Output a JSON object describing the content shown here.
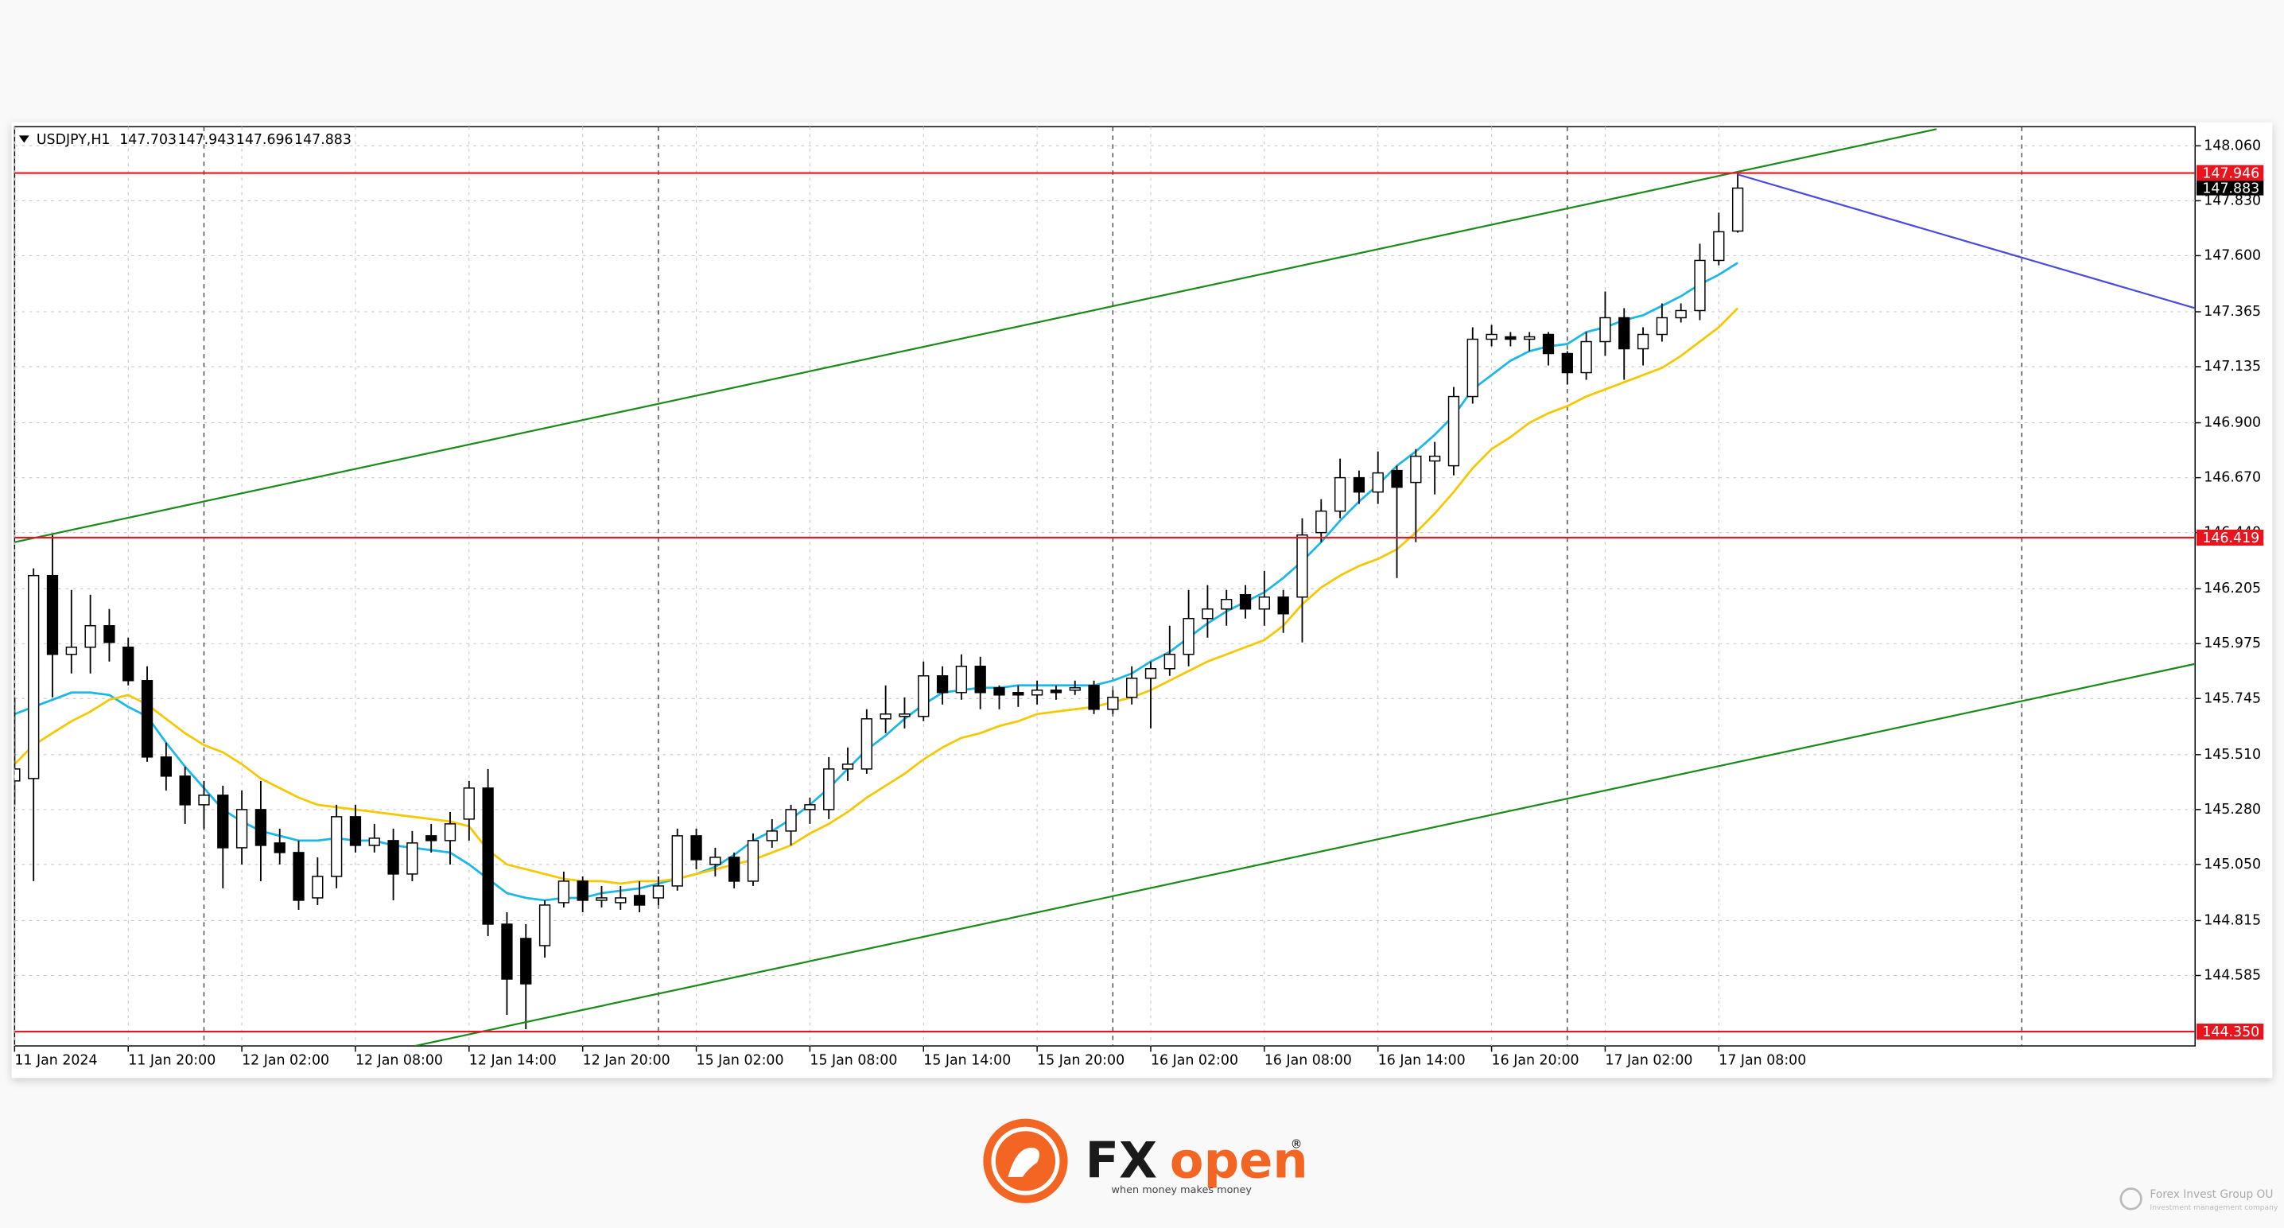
{
  "chart_data": {
    "type": "candlestick",
    "title": "USDJPY,H1",
    "quote": [
      "147.703",
      "147.943",
      "147.696",
      "147.883"
    ],
    "categories": [
      "11 Jan 2024",
      null,
      null,
      null,
      null,
      null,
      "11 Jan 20:00",
      null,
      null,
      null,
      null,
      null,
      "12 Jan 02:00",
      null,
      null,
      null,
      null,
      null,
      "12 Jan 08:00",
      null,
      null,
      null,
      null,
      null,
      "12 Jan 14:00",
      null,
      null,
      null,
      null,
      null,
      "12 Jan 20:00",
      null,
      null,
      null,
      null,
      null,
      "15 Jan 02:00",
      null,
      null,
      null,
      null,
      null,
      "15 Jan 08:00",
      null,
      null,
      null,
      null,
      null,
      "15 Jan 14:00",
      null,
      null,
      null,
      null,
      null,
      "15 Jan 20:00",
      null,
      null,
      null,
      null,
      null,
      "16 Jan 02:00",
      null,
      null,
      null,
      null,
      null,
      "16 Jan 08:00",
      null,
      null,
      null,
      null,
      null,
      "16 Jan 14:00",
      null,
      null,
      null,
      null,
      null,
      "16 Jan 20:00",
      null,
      null,
      null,
      null,
      null,
      "17 Jan 02:00",
      null,
      null,
      null,
      null,
      null,
      "17 Jan 08:00",
      null
    ],
    "open": [
      145.4,
      145.41,
      146.26,
      145.93,
      145.96,
      146.05,
      145.96,
      145.82,
      145.5,
      145.42,
      145.3,
      145.34,
      145.12,
      145.28,
      145.14,
      145.1,
      144.91,
      145.0,
      145.25,
      145.13,
      145.15,
      145.01,
      145.17,
      145.15,
      145.24,
      145.37,
      144.8,
      144.74,
      144.71,
      144.89,
      144.98,
      144.9,
      144.89,
      144.92,
      144.91,
      144.96,
      145.17,
      145.05,
      145.08,
      144.98,
      145.15,
      145.19,
      145.28,
      145.28,
      145.45,
      145.45,
      145.66,
      145.67,
      145.67,
      145.84,
      145.77,
      145.88,
      145.79,
      145.77,
      145.76,
      145.78,
      145.78,
      145.8,
      145.7,
      145.75,
      145.83,
      145.87,
      145.93,
      146.08,
      146.12,
      146.18,
      146.12,
      146.17,
      146.17,
      146.44,
      146.53,
      146.67,
      146.61,
      146.7,
      146.65,
      146.74,
      146.72,
      147.01,
      147.25,
      147.26,
      147.25,
      147.27,
      147.19,
      147.11,
      147.24,
      147.34,
      147.21,
      147.27,
      147.34,
      147.37,
      147.58,
      147.703
    ],
    "high": [
      145.75,
      146.29,
      146.43,
      146.2,
      146.18,
      146.12,
      146.0,
      145.88,
      145.56,
      145.46,
      145.4,
      145.38,
      145.36,
      145.4,
      145.2,
      145.15,
      145.08,
      145.3,
      145.3,
      145.22,
      145.2,
      145.19,
      145.22,
      145.27,
      145.4,
      145.45,
      144.85,
      144.8,
      144.9,
      145.02,
      145.0,
      144.96,
      144.96,
      144.98,
      145.0,
      145.2,
      145.2,
      145.12,
      145.1,
      145.18,
      145.24,
      145.3,
      145.33,
      145.5,
      145.54,
      145.7,
      145.8,
      145.75,
      145.9,
      145.88,
      145.93,
      145.92,
      145.8,
      145.8,
      145.82,
      145.8,
      145.82,
      145.82,
      145.78,
      145.88,
      145.9,
      146.05,
      146.2,
      146.22,
      146.2,
      146.22,
      146.28,
      146.2,
      146.5,
      146.58,
      146.75,
      146.7,
      146.78,
      146.72,
      146.79,
      146.82,
      147.05,
      147.3,
      147.31,
      147.28,
      147.28,
      147.28,
      147.2,
      147.28,
      147.45,
      147.38,
      147.3,
      147.4,
      147.4,
      147.65,
      147.78,
      147.943
    ],
    "low": [
      145.3,
      144.98,
      145.75,
      145.85,
      145.85,
      145.9,
      145.8,
      145.48,
      145.36,
      145.22,
      145.2,
      144.95,
      145.05,
      144.98,
      145.05,
      144.86,
      144.88,
      144.95,
      145.1,
      145.1,
      144.9,
      144.98,
      145.1,
      145.05,
      145.15,
      144.75,
      144.42,
      144.36,
      144.66,
      144.87,
      144.85,
      144.87,
      144.86,
      144.85,
      144.88,
      144.94,
      145.03,
      145.0,
      144.95,
      144.96,
      145.12,
      145.13,
      145.22,
      145.24,
      145.4,
      145.43,
      145.6,
      145.62,
      145.65,
      145.72,
      145.74,
      145.7,
      145.7,
      145.71,
      145.72,
      145.74,
      145.76,
      145.68,
      145.68,
      145.72,
      145.62,
      145.84,
      145.88,
      146.0,
      146.05,
      146.08,
      146.05,
      146.02,
      145.98,
      146.4,
      146.5,
      146.56,
      146.56,
      146.25,
      146.4,
      146.6,
      146.68,
      146.98,
      147.22,
      147.22,
      147.2,
      147.14,
      147.06,
      147.08,
      147.18,
      147.08,
      147.14,
      147.24,
      147.32,
      147.33,
      147.56,
      147.696
    ],
    "close": [
      145.45,
      146.26,
      145.93,
      145.96,
      146.05,
      145.98,
      145.82,
      145.5,
      145.42,
      145.3,
      145.34,
      145.12,
      145.28,
      145.13,
      145.1,
      144.9,
      145.0,
      145.25,
      145.13,
      145.16,
      145.01,
      145.14,
      145.15,
      145.22,
      145.37,
      144.8,
      144.57,
      144.55,
      144.88,
      144.98,
      144.9,
      144.91,
      144.91,
      144.88,
      144.96,
      145.17,
      145.07,
      145.08,
      144.98,
      145.15,
      145.19,
      145.28,
      145.3,
      145.45,
      145.47,
      145.66,
      145.68,
      145.68,
      145.84,
      145.77,
      145.88,
      145.77,
      145.76,
      145.76,
      145.78,
      145.77,
      145.79,
      145.7,
      145.75,
      145.83,
      145.87,
      145.93,
      146.08,
      146.12,
      146.16,
      146.12,
      146.17,
      146.1,
      146.43,
      146.53,
      146.67,
      146.61,
      146.69,
      146.63,
      146.76,
      146.76,
      147.01,
      147.25,
      147.27,
      147.25,
      147.26,
      147.19,
      147.11,
      147.24,
      147.34,
      147.21,
      147.27,
      147.34,
      147.37,
      147.58,
      147.7,
      147.883
    ],
    "colors": {
      "up": "#ffffff",
      "down": "#000000",
      "outline": "#000000"
    },
    "overlays": [
      {
        "color": "#1ab8e8",
        "values": [
          145.68,
          145.71,
          145.74,
          145.77,
          145.77,
          145.76,
          145.71,
          145.67,
          145.56,
          145.46,
          145.37,
          145.28,
          145.23,
          145.19,
          145.17,
          145.15,
          145.15,
          145.16,
          145.15,
          145.15,
          145.13,
          145.12,
          145.11,
          145.1,
          145.05,
          144.99,
          144.93,
          144.91,
          144.9,
          144.91,
          144.91,
          144.93,
          144.94,
          144.95,
          144.97,
          144.99,
          145.01,
          145.04,
          145.09,
          145.15,
          145.19,
          145.24,
          145.3,
          145.37,
          145.45,
          145.53,
          145.59,
          145.66,
          145.72,
          145.77,
          145.78,
          145.79,
          145.79,
          145.8,
          145.8,
          145.8,
          145.8,
          145.8,
          145.82,
          145.85,
          145.9,
          145.94,
          146.0,
          146.06,
          146.11,
          146.15,
          146.19,
          146.25,
          146.32,
          146.4,
          146.49,
          146.57,
          146.64,
          146.72,
          146.78,
          146.85,
          146.93,
          147.04,
          147.1,
          147.16,
          147.2,
          147.22,
          147.23,
          147.28,
          147.3,
          147.33,
          147.35,
          147.39,
          147.43,
          147.48,
          147.52,
          147.57
        ]
      },
      {
        "color": "#f5c800",
        "values": [
          145.47,
          145.55,
          145.6,
          145.65,
          145.69,
          145.74,
          145.76,
          145.72,
          145.66,
          145.6,
          145.55,
          145.52,
          145.47,
          145.41,
          145.37,
          145.33,
          145.3,
          145.29,
          145.28,
          145.27,
          145.26,
          145.25,
          145.24,
          145.23,
          145.21,
          145.11,
          145.05,
          145.03,
          145.01,
          144.99,
          144.98,
          144.98,
          144.97,
          144.98,
          144.98,
          144.99,
          145.01,
          145.03,
          145.05,
          145.07,
          145.1,
          145.13,
          145.18,
          145.22,
          145.27,
          145.33,
          145.38,
          145.43,
          145.49,
          145.54,
          145.58,
          145.6,
          145.63,
          145.65,
          145.68,
          145.69,
          145.7,
          145.71,
          145.73,
          145.75,
          145.78,
          145.82,
          145.86,
          145.9,
          145.93,
          145.96,
          145.99,
          146.05,
          146.14,
          146.21,
          146.26,
          146.3,
          146.33,
          146.37,
          146.44,
          146.52,
          146.61,
          146.71,
          146.79,
          146.84,
          146.9,
          146.94,
          146.97,
          147.01,
          147.04,
          147.07,
          147.1,
          147.13,
          147.18,
          147.24,
          147.3,
          147.38
        ]
      }
    ],
    "trendlines": [
      {
        "color": "#1a8a1a",
        "points": [
          [
            0,
            146.4
          ],
          [
            101.5,
            148.13
          ]
        ]
      },
      {
        "color": "#1a8a1a",
        "points": [
          [
            21.15,
            144.29
          ],
          [
            115.15,
            145.89
          ]
        ]
      },
      {
        "color": "#4a4ae0",
        "points": [
          [
            91,
            147.94
          ],
          [
            115.15,
            147.38
          ]
        ]
      }
    ],
    "hlines": [
      {
        "value": 147.946,
        "label": "147.946",
        "color": "#e8141e"
      },
      {
        "value": 146.419,
        "label": "146.419",
        "color": "#e8141e"
      },
      {
        "value": 144.35,
        "label": "144.350",
        "color": "#e8141e"
      }
    ],
    "last_price": {
      "value": 147.883,
      "label": "147.883"
    },
    "ylim": [
      144.29,
      148.14
    ],
    "yticks": [
      {
        "value": 148.06,
        "label": "148.060"
      },
      {
        "value": 147.83,
        "label": "147.830"
      },
      {
        "value": 147.6,
        "label": "147.600"
      },
      {
        "value": 147.365,
        "label": "147.365"
      },
      {
        "value": 147.135,
        "label": "147.135"
      },
      {
        "value": 146.9,
        "label": "146.900"
      },
      {
        "value": 146.67,
        "label": "146.670"
      },
      {
        "value": 146.44,
        "label": "146.440"
      },
      {
        "value": 146.205,
        "label": "146.205"
      },
      {
        "value": 145.975,
        "label": "145.975"
      },
      {
        "value": 145.745,
        "label": "145.745"
      },
      {
        "value": 145.51,
        "label": "145.510"
      },
      {
        "value": 145.28,
        "label": "145.280"
      },
      {
        "value": 145.05,
        "label": "145.050"
      },
      {
        "value": 144.815,
        "label": "144.815"
      },
      {
        "value": 144.585,
        "label": "144.585"
      }
    ],
    "grid": true
  },
  "brand": {
    "fx": "FX",
    "open": "open",
    "reg": "®",
    "tagline": "when money makes money",
    "company": "Forex Invest Group OU",
    "company_sub": "Investment management company"
  }
}
